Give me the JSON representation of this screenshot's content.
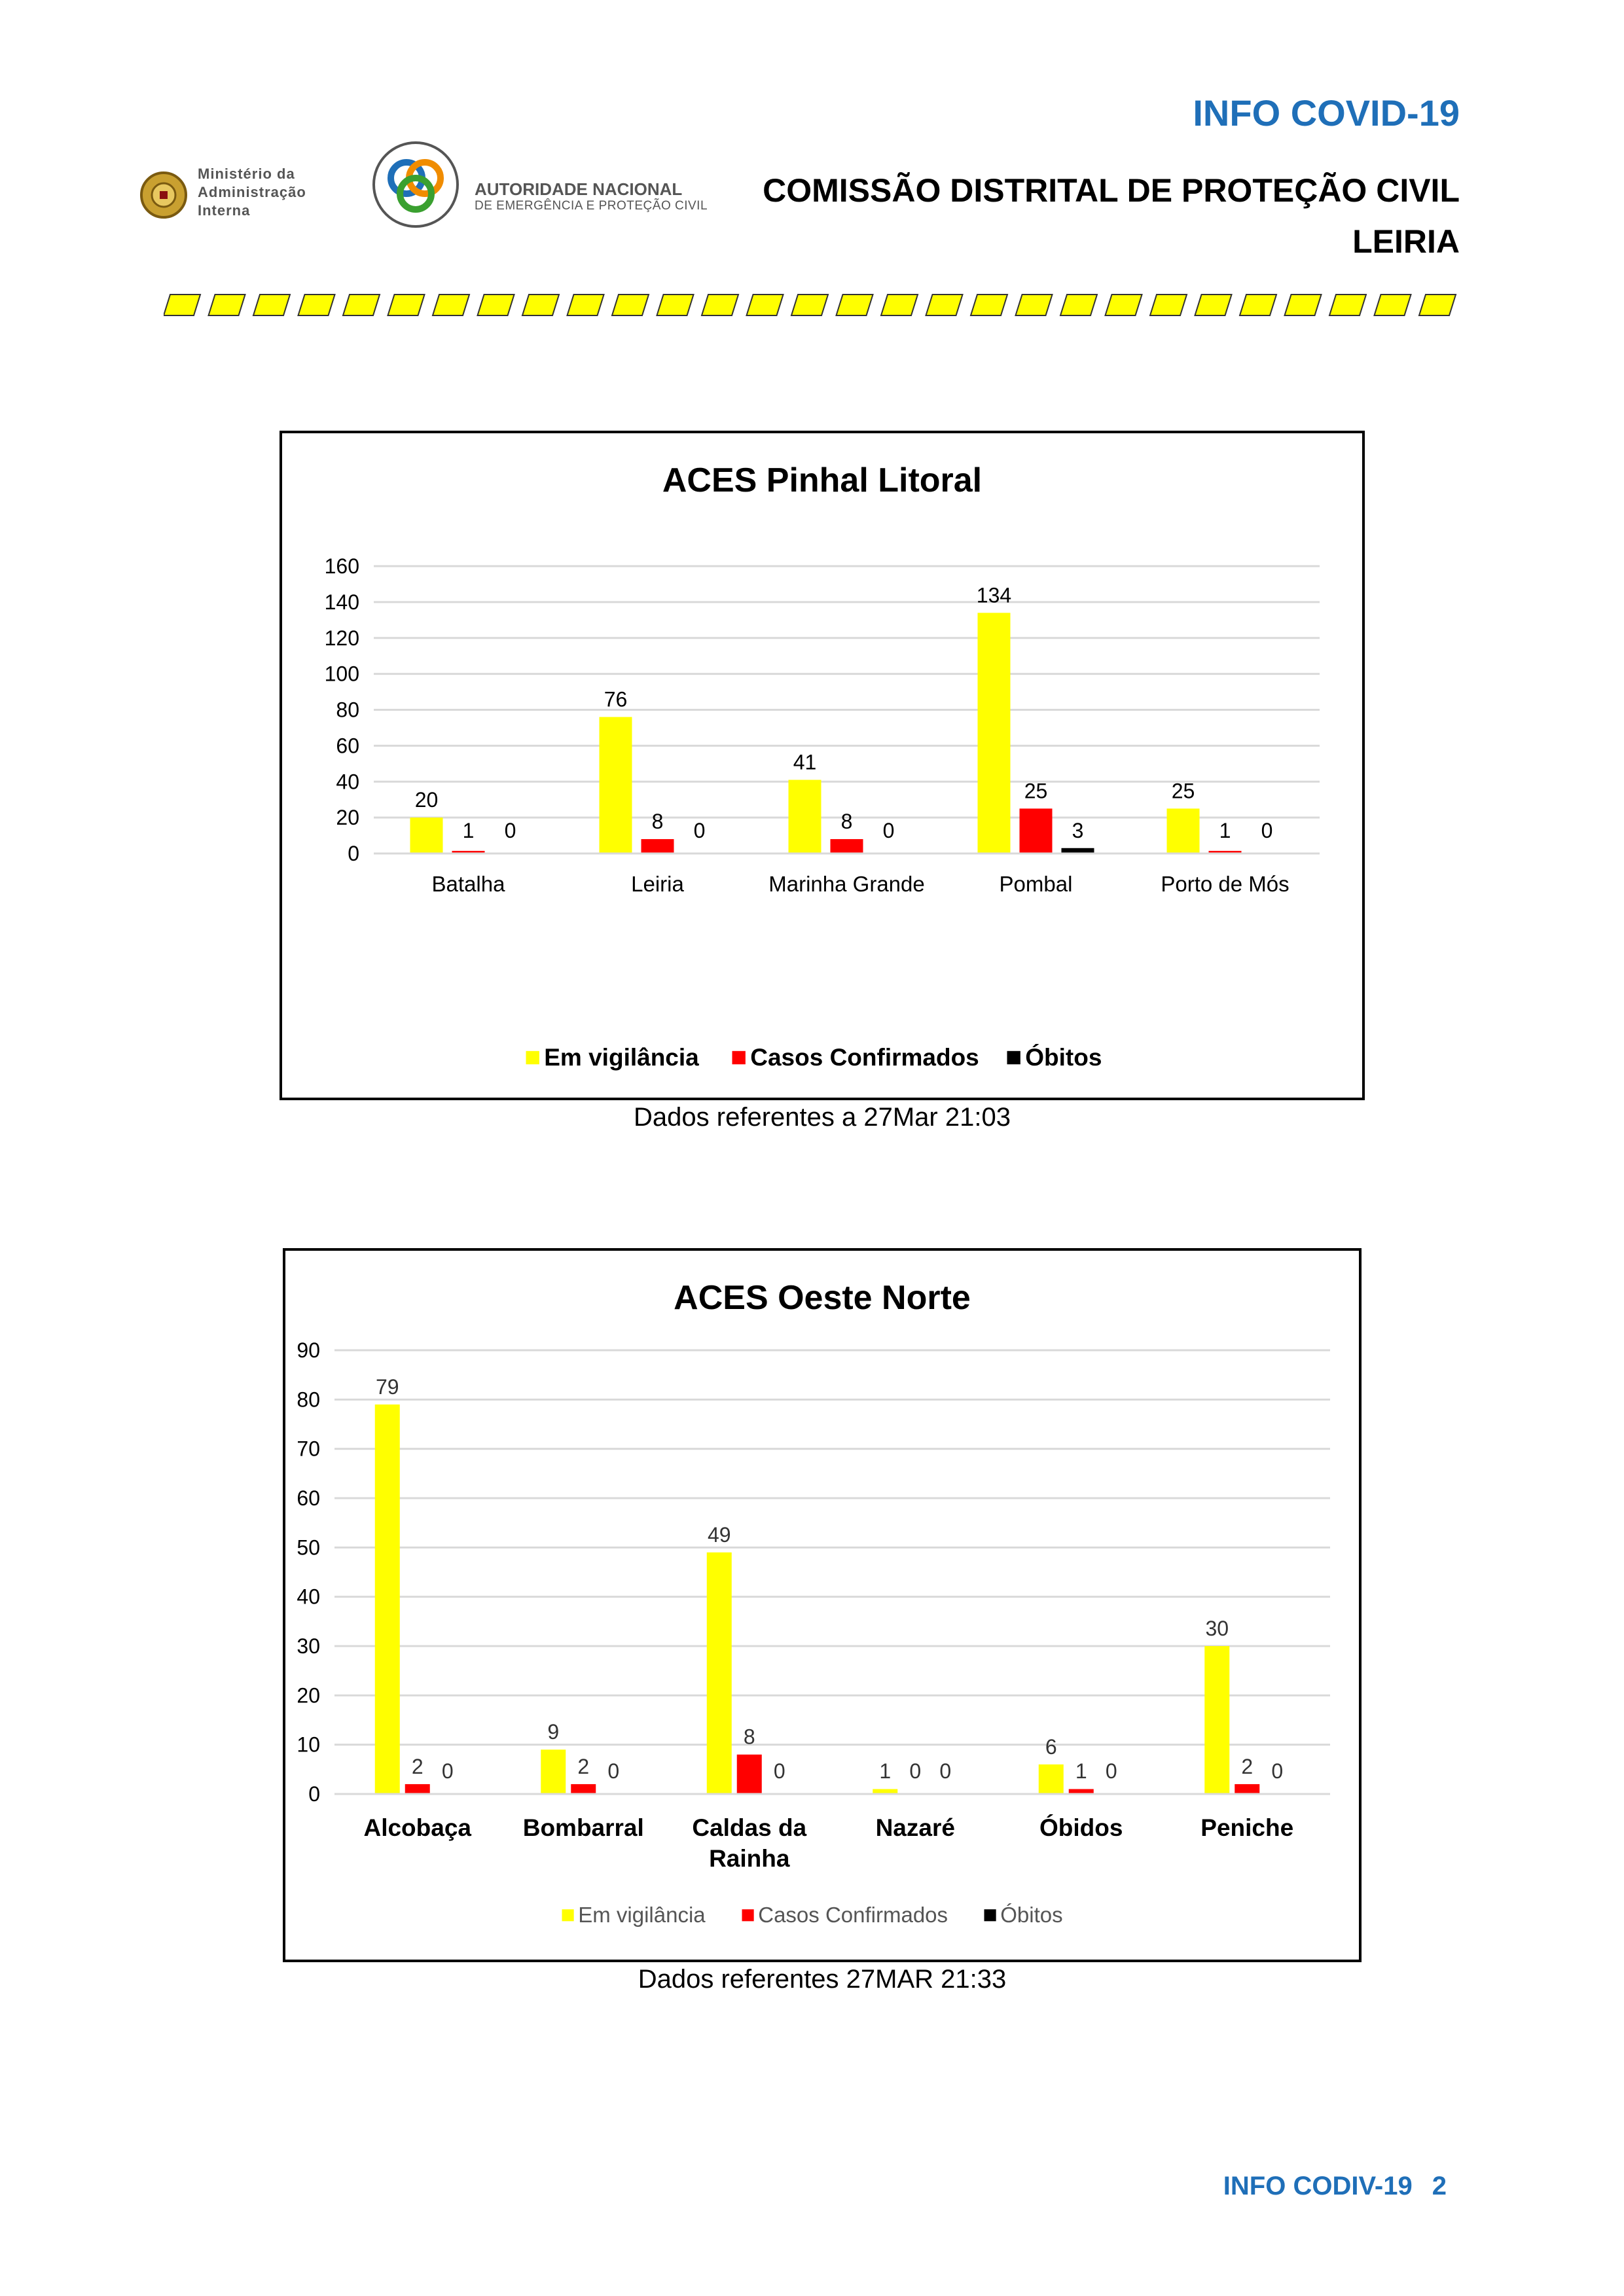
{
  "header": {
    "info_title": "INFO COVID-19",
    "commission_title": "COMISSÃO DISTRITAL DE PROTEÇÃO CIVIL",
    "district": "LEIRIA",
    "mai_logo_lines": [
      "Ministério da",
      "Administração",
      "Interna"
    ],
    "anepc_logo_line1": "AUTORIDADE NACIONAL",
    "anepc_logo_line2": "DE EMERGÊNCIA E PROTEÇÃO CIVIL",
    "stripe_color": "#ffff00"
  },
  "colors": {
    "vigilancia": "#ffff00",
    "confirmados": "#ff0000",
    "obitos": "#000000",
    "blue": "#1f6fb8"
  },
  "chart_data": [
    {
      "type": "bar",
      "title": "ACES Pinhal Litoral",
      "categories": [
        "Batalha",
        "Leiria",
        "Marinha Grande",
        "Pombal",
        "Porto de Mós"
      ],
      "series": [
        {
          "name": "Em vigilância",
          "values": [
            20,
            76,
            41,
            134,
            25
          ]
        },
        {
          "name": "Casos Confirmados",
          "values": [
            1,
            8,
            8,
            25,
            1
          ]
        },
        {
          "name": "Óbitos",
          "values": [
            0,
            0,
            0,
            3,
            0
          ]
        }
      ],
      "ylim": [
        0,
        160
      ],
      "yticks": [
        0,
        20,
        40,
        60,
        80,
        100,
        120,
        140,
        160
      ],
      "grid": true,
      "legend": "bottom"
    },
    {
      "type": "bar",
      "title": "ACES Oeste Norte",
      "categories": [
        "Alcobaça",
        "Bombarral",
        "Caldas da Rainha",
        "Nazaré",
        "Óbidos",
        "Peniche"
      ],
      "series": [
        {
          "name": "Em vigilância",
          "values": [
            79,
            9,
            49,
            1,
            6,
            30
          ]
        },
        {
          "name": "Casos Confirmados",
          "values": [
            2,
            2,
            8,
            0,
            1,
            2
          ]
        },
        {
          "name": "Óbitos",
          "values": [
            0,
            0,
            0,
            0,
            0,
            0
          ]
        }
      ],
      "ylim": [
        0,
        90
      ],
      "yticks": [
        0,
        10,
        20,
        30,
        40,
        50,
        60,
        70,
        80,
        90
      ],
      "grid": true,
      "legend": "bottom"
    }
  ],
  "captions": {
    "chart1": "Dados referentes a 27Mar 21:03",
    "chart2": "Dados referentes 27MAR 21:33"
  },
  "footer": {
    "label": "INFO CODIV-19",
    "page": "2"
  }
}
